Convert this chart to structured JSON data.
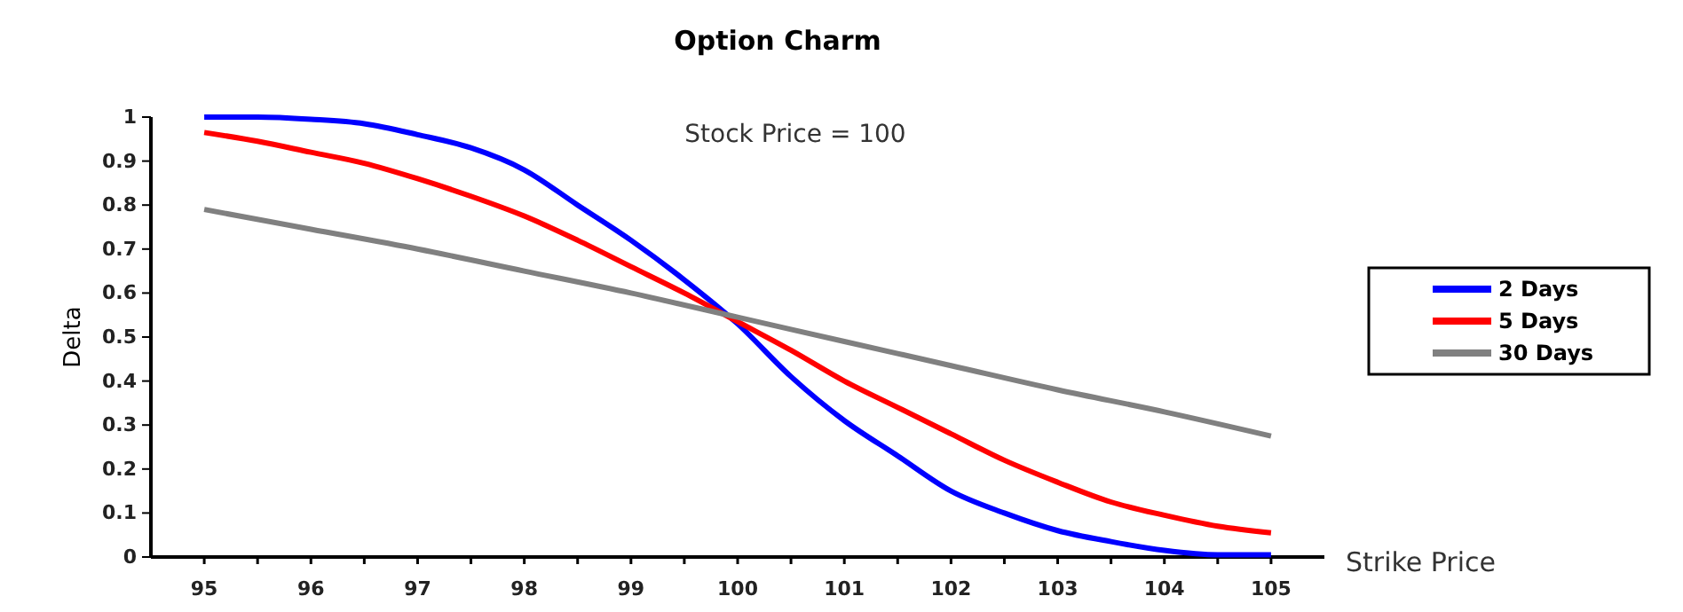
{
  "chart_data": {
    "type": "line",
    "title": "Option Charm",
    "xlabel": "Strike Price",
    "ylabel": "Delta",
    "annotations": [
      "Stock Price = 100"
    ],
    "x": [
      95,
      95.5,
      96,
      96.5,
      97,
      97.5,
      98,
      98.5,
      99,
      99.5,
      100,
      100.5,
      101,
      101.5,
      102,
      102.5,
      103,
      103.5,
      104,
      104.5,
      105
    ],
    "xlim": [
      94.5,
      105.5
    ],
    "xticks": [
      95,
      {
        "value": 95.5,
        "label": null
      },
      96,
      {
        "value": 96.5,
        "label": null
      },
      97,
      {
        "value": 97.5,
        "label": null
      },
      98,
      {
        "value": 98.5,
        "label": null
      },
      99,
      {
        "value": 99.5,
        "label": null
      },
      100,
      {
        "value": 100.5,
        "label": null
      },
      101,
      {
        "value": 101.5,
        "label": null
      },
      102,
      {
        "value": 102.5,
        "label": null
      },
      103,
      {
        "value": 103.5,
        "label": null
      },
      104,
      {
        "value": 104.5,
        "label": null
      },
      105
    ],
    "ylim": [
      0,
      1
    ],
    "yticks": [
      0,
      0.1,
      0.2,
      0.3,
      0.4,
      0.5,
      0.6,
      0.7,
      0.8,
      0.9,
      1
    ],
    "grid": false,
    "legend": "right",
    "marker": "none",
    "line_style": "solid",
    "series": [
      {
        "name": "2 Days",
        "color": "#0000ff",
        "values": [
          1.0,
          1.0,
          0.995,
          0.985,
          0.96,
          0.93,
          0.88,
          0.8,
          0.72,
          0.63,
          0.53,
          0.41,
          0.31,
          0.23,
          0.15,
          0.1,
          0.06,
          0.035,
          0.015,
          0.005,
          0.005
        ]
      },
      {
        "name": "5 Days",
        "color": "#ff0000",
        "values": [
          0.965,
          0.945,
          0.92,
          0.895,
          0.86,
          0.82,
          0.775,
          0.72,
          0.66,
          0.6,
          0.535,
          0.47,
          0.4,
          0.34,
          0.28,
          0.22,
          0.17,
          0.125,
          0.095,
          0.07,
          0.055
        ]
      },
      {
        "name": "30 Days",
        "color": "#808080",
        "x": [
          95,
          96,
          97,
          98,
          99,
          100,
          101,
          102,
          103,
          104,
          105
        ],
        "values": [
          0.79,
          0.745,
          0.7,
          0.65,
          0.6,
          0.545,
          0.49,
          0.435,
          0.38,
          0.33,
          0.275
        ]
      }
    ]
  }
}
